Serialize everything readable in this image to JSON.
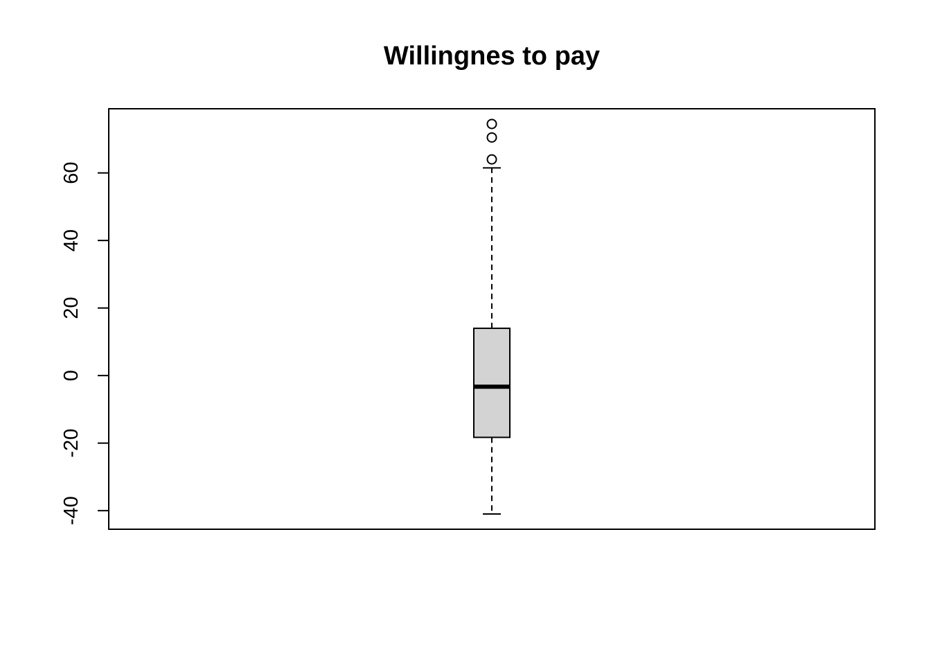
{
  "chart_data": {
    "type": "boxplot",
    "title": "Willingnes to pay",
    "xlabel": "",
    "ylabel": "",
    "ylim": [
      -45.5,
      79
    ],
    "yticks": [
      -40,
      -20,
      0,
      20,
      40,
      60
    ],
    "ytick_labels": [
      "-40",
      "-20",
      "0",
      "20",
      "40",
      "60"
    ],
    "grid": false,
    "boxes": [
      {
        "whisker_low": -41,
        "q1": -18.3,
        "median": -3.3,
        "q3": 14,
        "whisker_high": 61.5,
        "outliers": [
          64,
          70.5,
          74.5
        ]
      }
    ],
    "colors": {
      "box_fill": "#d3d3d3",
      "line": "#000000"
    }
  }
}
